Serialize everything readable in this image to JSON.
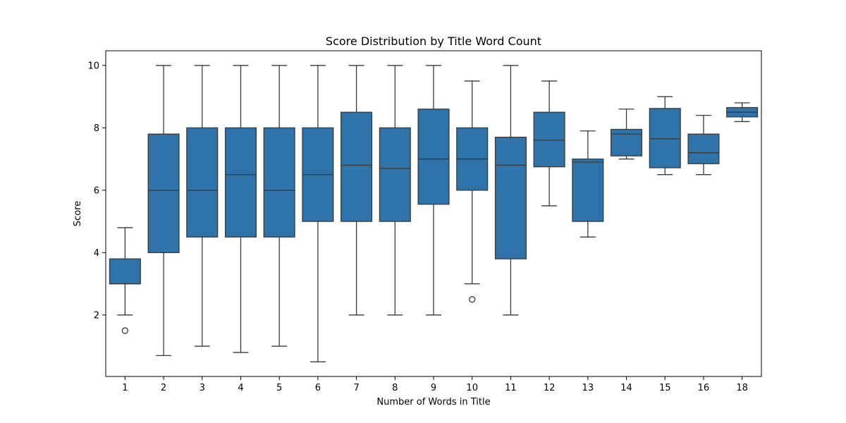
{
  "chart_data": {
    "type": "box",
    "title": "Score Distribution by Title Word Count",
    "xlabel": "Number of Words in Title",
    "ylabel": "Score",
    "ylim": [
      0.03,
      10.47
    ],
    "yticks": [
      2,
      4,
      6,
      8,
      10
    ],
    "grid": false,
    "legend": "none",
    "color": "#2e73a9",
    "line_color": "#3a3a3a",
    "categories": [
      "1",
      "2",
      "3",
      "4",
      "5",
      "6",
      "7",
      "8",
      "9",
      "10",
      "11",
      "12",
      "13",
      "14",
      "15",
      "16",
      "18"
    ],
    "boxes": [
      {
        "category": "1",
        "whisker_low": 2.0,
        "q1": 3.0,
        "median": 3.0,
        "q3": 3.8,
        "whisker_high": 4.8,
        "outliers": [
          1.5
        ]
      },
      {
        "category": "2",
        "whisker_low": 0.7,
        "q1": 4.0,
        "median": 6.0,
        "q3": 7.8,
        "whisker_high": 10.0,
        "outliers": []
      },
      {
        "category": "3",
        "whisker_low": 1.0,
        "q1": 4.5,
        "median": 6.0,
        "q3": 8.0,
        "whisker_high": 10.0,
        "outliers": []
      },
      {
        "category": "4",
        "whisker_low": 0.8,
        "q1": 4.5,
        "median": 6.5,
        "q3": 8.0,
        "whisker_high": 10.0,
        "outliers": []
      },
      {
        "category": "5",
        "whisker_low": 1.0,
        "q1": 4.5,
        "median": 6.0,
        "q3": 8.0,
        "whisker_high": 10.0,
        "outliers": []
      },
      {
        "category": "6",
        "whisker_low": 0.5,
        "q1": 5.0,
        "median": 6.5,
        "q3": 8.0,
        "whisker_high": 10.0,
        "outliers": []
      },
      {
        "category": "7",
        "whisker_low": 2.0,
        "q1": 5.0,
        "median": 6.8,
        "q3": 8.5,
        "whisker_high": 10.0,
        "outliers": []
      },
      {
        "category": "8",
        "whisker_low": 2.0,
        "q1": 5.0,
        "median": 6.7,
        "q3": 8.0,
        "whisker_high": 10.0,
        "outliers": []
      },
      {
        "category": "9",
        "whisker_low": 2.0,
        "q1": 5.55,
        "median": 7.0,
        "q3": 8.6,
        "whisker_high": 10.0,
        "outliers": []
      },
      {
        "category": "10",
        "whisker_low": 3.0,
        "q1": 6.0,
        "median": 7.0,
        "q3": 8.0,
        "whisker_high": 9.5,
        "outliers": [
          2.5
        ]
      },
      {
        "category": "11",
        "whisker_low": 2.0,
        "q1": 3.8,
        "median": 6.8,
        "q3": 7.7,
        "whisker_high": 10.0,
        "outliers": []
      },
      {
        "category": "12",
        "whisker_low": 5.5,
        "q1": 6.75,
        "median": 7.6,
        "q3": 8.5,
        "whisker_high": 9.5,
        "outliers": []
      },
      {
        "category": "13",
        "whisker_low": 4.5,
        "q1": 5.0,
        "median": 6.9,
        "q3": 7.0,
        "whisker_high": 7.9,
        "outliers": []
      },
      {
        "category": "14",
        "whisker_low": 7.0,
        "q1": 7.1,
        "median": 7.8,
        "q3": 7.95,
        "whisker_high": 8.6,
        "outliers": []
      },
      {
        "category": "15",
        "whisker_low": 6.5,
        "q1": 6.72,
        "median": 7.65,
        "q3": 8.62,
        "whisker_high": 9.0,
        "outliers": []
      },
      {
        "category": "16",
        "whisker_low": 6.5,
        "q1": 6.85,
        "median": 7.2,
        "q3": 7.8,
        "whisker_high": 8.4,
        "outliers": []
      },
      {
        "category": "18",
        "whisker_low": 8.2,
        "q1": 8.35,
        "median": 8.5,
        "q3": 8.65,
        "whisker_high": 8.8,
        "outliers": []
      }
    ]
  }
}
